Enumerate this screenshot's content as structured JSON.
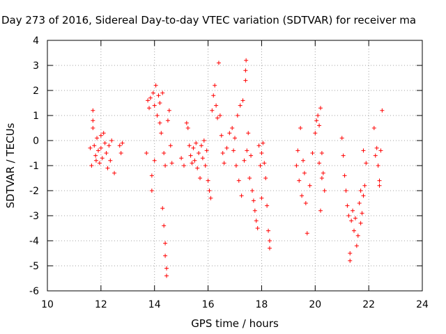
{
  "chart_data": {
    "type": "scatter",
    "title": "Day 273 of 2016, Sidereal Day-to-day VTEC variation (SDTVAR) for receiver ma",
    "xlabel": "GPS time / hours",
    "ylabel": "SDTVAR / TECUs",
    "xlim": [
      10,
      24
    ],
    "ylim": [
      -6,
      4
    ],
    "xticks": [
      "10",
      "12",
      "14",
      "16",
      "18",
      "20",
      "22",
      "24"
    ],
    "yticks": [
      "4",
      "3",
      "2",
      "1",
      "0",
      "-1",
      "-2",
      "-3",
      "-4",
      "-5",
      "-6"
    ],
    "grid": true,
    "marker": "+",
    "color": "#ff0000",
    "series": [
      {
        "name": "SDTVAR",
        "points": [
          [
            11.6,
            -0.3
          ],
          [
            11.65,
            -1.0
          ],
          [
            11.7,
            1.2
          ],
          [
            11.7,
            0.8
          ],
          [
            11.7,
            0.5
          ],
          [
            11.75,
            -0.2
          ],
          [
            11.8,
            -0.6
          ],
          [
            11.82,
            -0.8
          ],
          [
            11.85,
            0.1
          ],
          [
            11.9,
            -0.4
          ],
          [
            11.95,
            -0.9
          ],
          [
            12.0,
            0.2
          ],
          [
            12.0,
            -0.3
          ],
          [
            12.05,
            -0.7
          ],
          [
            12.1,
            0.3
          ],
          [
            12.15,
            -0.1
          ],
          [
            12.2,
            -0.5
          ],
          [
            12.25,
            -1.1
          ],
          [
            12.3,
            -0.2
          ],
          [
            12.35,
            -0.8
          ],
          [
            12.4,
            0.0
          ],
          [
            12.5,
            -1.3
          ],
          [
            12.7,
            -0.2
          ],
          [
            12.75,
            -0.5
          ],
          [
            12.8,
            -0.1
          ],
          [
            13.7,
            -0.5
          ],
          [
            13.75,
            1.6
          ],
          [
            13.8,
            1.3
          ],
          [
            13.85,
            1.7
          ],
          [
            13.9,
            -1.4
          ],
          [
            13.9,
            -2.0
          ],
          [
            13.95,
            1.9
          ],
          [
            14.0,
            -0.8
          ],
          [
            14.0,
            1.4
          ],
          [
            14.05,
            2.2
          ],
          [
            14.1,
            1.0
          ],
          [
            14.15,
            1.8
          ],
          [
            14.2,
            0.7
          ],
          [
            14.2,
            1.5
          ],
          [
            14.25,
            0.3
          ],
          [
            14.3,
            1.9
          ],
          [
            14.3,
            -2.7
          ],
          [
            14.35,
            -0.5
          ],
          [
            14.35,
            -3.4
          ],
          [
            14.4,
            -1.0
          ],
          [
            14.4,
            -4.1
          ],
          [
            14.4,
            -4.6
          ],
          [
            14.45,
            -5.1
          ],
          [
            14.45,
            -5.4
          ],
          [
            14.5,
            0.8
          ],
          [
            14.55,
            1.2
          ],
          [
            14.6,
            -0.2
          ],
          [
            14.65,
            -0.9
          ],
          [
            15.0,
            -0.7
          ],
          [
            15.1,
            -1.0
          ],
          [
            15.2,
            0.7
          ],
          [
            15.25,
            0.5
          ],
          [
            15.3,
            -0.2
          ],
          [
            15.35,
            -0.6
          ],
          [
            15.4,
            -0.9
          ],
          [
            15.45,
            -0.3
          ],
          [
            15.5,
            -0.8
          ],
          [
            15.55,
            -0.1
          ],
          [
            15.6,
            -1.1
          ],
          [
            15.65,
            -0.5
          ],
          [
            15.7,
            -1.5
          ],
          [
            15.75,
            -0.2
          ],
          [
            15.8,
            -0.7
          ],
          [
            15.85,
            0.0
          ],
          [
            15.9,
            -1.0
          ],
          [
            15.95,
            -0.4
          ],
          [
            16.0,
            -1.6
          ],
          [
            16.05,
            -2.0
          ],
          [
            16.1,
            -2.3
          ],
          [
            16.15,
            1.2
          ],
          [
            16.2,
            1.8
          ],
          [
            16.25,
            2.2
          ],
          [
            16.3,
            1.4
          ],
          [
            16.35,
            0.9
          ],
          [
            16.4,
            3.1
          ],
          [
            16.45,
            1.0
          ],
          [
            16.5,
            0.2
          ],
          [
            16.55,
            -0.5
          ],
          [
            16.6,
            -0.9
          ],
          [
            16.7,
            -0.3
          ],
          [
            16.8,
            0.3
          ],
          [
            16.9,
            0.5
          ],
          [
            16.95,
            -0.4
          ],
          [
            17.0,
            0.1
          ],
          [
            17.05,
            -1.0
          ],
          [
            17.1,
            1.0
          ],
          [
            17.15,
            -1.6
          ],
          [
            17.2,
            1.4
          ],
          [
            17.25,
            -2.2
          ],
          [
            17.3,
            1.6
          ],
          [
            17.35,
            -0.8
          ],
          [
            17.4,
            2.4
          ],
          [
            17.4,
            2.8
          ],
          [
            17.42,
            3.2
          ],
          [
            17.45,
            -0.4
          ],
          [
            17.5,
            0.3
          ],
          [
            17.55,
            -1.5
          ],
          [
            17.6,
            -0.6
          ],
          [
            17.65,
            -2.0
          ],
          [
            17.7,
            -2.4
          ],
          [
            17.75,
            -2.8
          ],
          [
            17.8,
            -3.2
          ],
          [
            17.85,
            -3.5
          ],
          [
            17.9,
            -0.2
          ],
          [
            17.95,
            -1.0
          ],
          [
            18.0,
            -0.5
          ],
          [
            18.0,
            -2.3
          ],
          [
            18.05,
            -0.1
          ],
          [
            18.1,
            -0.9
          ],
          [
            18.15,
            -1.5
          ],
          [
            18.2,
            -2.6
          ],
          [
            18.25,
            -3.6
          ],
          [
            18.3,
            -4.0
          ],
          [
            18.3,
            -4.3
          ],
          [
            19.3,
            -1.0
          ],
          [
            19.35,
            -0.4
          ],
          [
            19.4,
            -1.6
          ],
          [
            19.45,
            0.5
          ],
          [
            19.5,
            -2.2
          ],
          [
            19.55,
            -0.8
          ],
          [
            19.6,
            -1.3
          ],
          [
            19.65,
            -2.5
          ],
          [
            19.7,
            -3.7
          ],
          [
            19.8,
            -1.8
          ],
          [
            19.9,
            -0.5
          ],
          [
            20.0,
            0.3
          ],
          [
            20.05,
            0.8
          ],
          [
            20.1,
            1.0
          ],
          [
            20.15,
            0.6
          ],
          [
            20.2,
            1.3
          ],
          [
            20.25,
            -0.5
          ],
          [
            20.3,
            -1.3
          ],
          [
            20.35,
            -2.0
          ],
          [
            20.2,
            -2.8
          ],
          [
            20.25,
            -1.5
          ],
          [
            20.15,
            -0.9
          ],
          [
            21.0,
            0.1
          ],
          [
            21.05,
            -0.6
          ],
          [
            21.1,
            -1.4
          ],
          [
            21.15,
            -2.0
          ],
          [
            21.2,
            -2.6
          ],
          [
            21.25,
            -3.0
          ],
          [
            21.3,
            -4.5
          ],
          [
            21.3,
            -4.8
          ],
          [
            21.35,
            -3.2
          ],
          [
            21.4,
            -2.8
          ],
          [
            21.45,
            -3.6
          ],
          [
            21.5,
            -3.1
          ],
          [
            21.55,
            -4.2
          ],
          [
            21.6,
            -3.8
          ],
          [
            21.65,
            -2.5
          ],
          [
            21.7,
            -2.0
          ],
          [
            21.75,
            -2.9
          ],
          [
            21.8,
            -0.4
          ],
          [
            21.85,
            -1.8
          ],
          [
            21.9,
            -0.9
          ],
          [
            21.7,
            -3.3
          ],
          [
            21.8,
            -2.2
          ],
          [
            22.2,
            0.5
          ],
          [
            22.25,
            -0.6
          ],
          [
            22.3,
            -0.3
          ],
          [
            22.35,
            -1.0
          ],
          [
            22.4,
            -1.6
          ],
          [
            22.45,
            -0.4
          ],
          [
            22.5,
            1.2
          ],
          [
            22.4,
            -1.8
          ]
        ]
      }
    ]
  }
}
